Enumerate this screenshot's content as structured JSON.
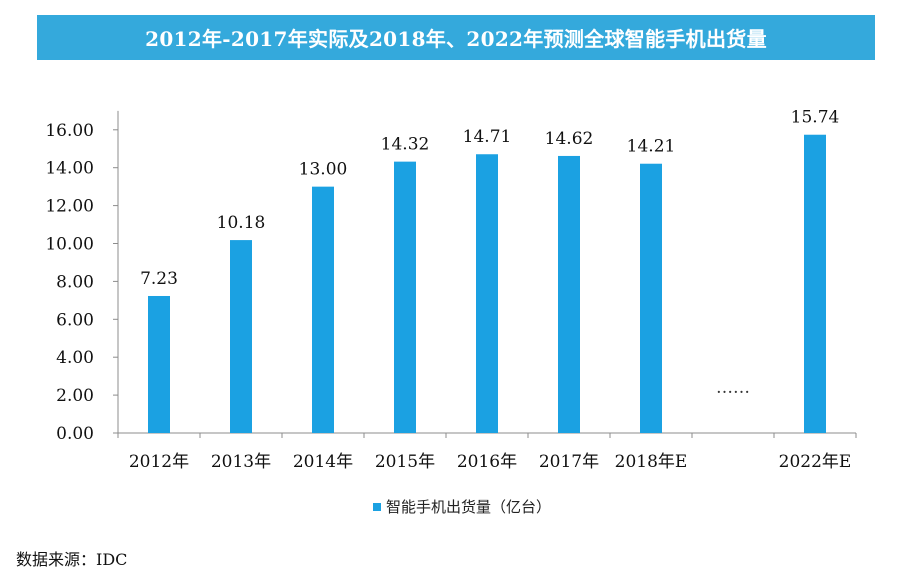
{
  "title": "2012年-2017年实际及2018年、2022年预测全球智能手机出货量",
  "source": "数据来源：IDC",
  "gap_marker": "……",
  "colors": {
    "title_bar": "#34a9dc",
    "bar": "#1ba1e2"
  },
  "chart_data": {
    "type": "bar",
    "categories": [
      "2012年",
      "2013年",
      "2014年",
      "2015年",
      "2016年",
      "2017年",
      "2018年E",
      "",
      "2022年E"
    ],
    "series": [
      {
        "name": "智能手机出货量（亿台）",
        "values": [
          7.23,
          10.18,
          13.0,
          14.32,
          14.71,
          14.62,
          14.21,
          null,
          15.74
        ]
      }
    ],
    "data_labels": [
      "7.23",
      "10.18",
      "13.00",
      "14.32",
      "14.71",
      "14.62",
      "14.21",
      "",
      "15.74"
    ],
    "y_ticks": [
      "0.00",
      "2.00",
      "4.00",
      "6.00",
      "8.00",
      "10.00",
      "12.00",
      "14.00",
      "16.00"
    ],
    "ylim": [
      0,
      17
    ],
    "grid": false,
    "legend_position": "bottom"
  }
}
